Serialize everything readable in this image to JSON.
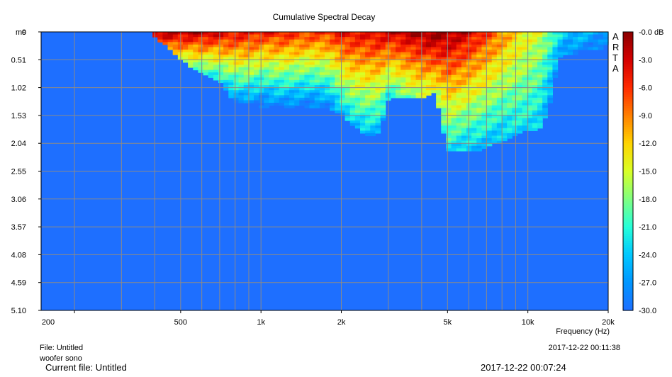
{
  "chart_data": {
    "type": "heatmap",
    "title": "Cumulative Spectral Decay",
    "xlabel": "Frequency (Hz)",
    "ylabel": "ms",
    "x_scale": "log",
    "x_range_hz": [
      150,
      20000
    ],
    "x_tick_values": [
      200,
      500,
      1000,
      2000,
      5000,
      10000,
      20000
    ],
    "x_tick_labels": [
      "200",
      "500",
      "1k",
      "2k",
      "5k",
      "10k",
      "20k"
    ],
    "y_range_ms": [
      0,
      5.1
    ],
    "y_tick_labels": [
      "0",
      "0.51",
      "1.02",
      "1.53",
      "2.04",
      "2.55",
      "3.06",
      "3.57",
      "4.08",
      "4.59",
      "5.10"
    ],
    "colorbar_range_db": [
      -30,
      0
    ],
    "colorbar_labels": [
      "-0.0 dB",
      "-3.0",
      "-6.0",
      "-9.0",
      "-12.0",
      "-15.0",
      "-18.0",
      "-21.0",
      "-24.0",
      "-27.0",
      "-30.0"
    ],
    "colorbar_colors": [
      "#8b0000",
      "#d40000",
      "#ff2a00",
      "#ff7f00",
      "#ffd400",
      "#d9ff26",
      "#80ff80",
      "#26ffd9",
      "#00c8ff",
      "#0096ff",
      "#1e6fff"
    ],
    "background_color": "#1e6fff",
    "grid": true,
    "decay_profile": {
      "frequencies_hz": [
        400,
        450,
        500,
        550,
        600,
        650,
        700,
        800,
        900,
        1000,
        1200,
        1500,
        1800,
        2000,
        2200,
        2500,
        2800,
        3000,
        3500,
        4000,
        4500,
        5000,
        5500,
        6000,
        6500,
        7000,
        8000,
        9000,
        10000,
        11000,
        12000,
        13000,
        14000,
        15000,
        17000,
        20000
      ],
      "peak_level_db": [
        -1,
        -1,
        -1.5,
        -2,
        -2,
        -2.5,
        -3,
        -4,
        -4,
        -5,
        -5,
        -6,
        -6,
        -4,
        -4,
        -4,
        -3,
        -3,
        -2,
        -1,
        0,
        -1,
        -2,
        -3,
        -5,
        -6,
        -9,
        -12,
        -14,
        -15,
        -18,
        -22,
        -24,
        -24,
        -25,
        -27
      ],
      "decay_end_ms": [
        0.1,
        0.3,
        0.5,
        0.65,
        0.75,
        0.85,
        0.9,
        1.3,
        1.3,
        1.4,
        1.4,
        1.4,
        1.4,
        1.5,
        1.7,
        1.9,
        1.85,
        1.2,
        1.2,
        1.2,
        1.1,
        2.2,
        2.2,
        2.2,
        2.2,
        2.1,
        2.0,
        1.9,
        1.8,
        1.8,
        1.4,
        0.5,
        0.4,
        0.4,
        0.35,
        0.3
      ],
      "decay_rate_db_per_ms": [
        40,
        30,
        28,
        26,
        25,
        24,
        22,
        18,
        18,
        18,
        17,
        17,
        16,
        14,
        12,
        11,
        12,
        16,
        14,
        13,
        14,
        10,
        10,
        10,
        9,
        9,
        8,
        6,
        5,
        5,
        6,
        8,
        10,
        10,
        10,
        10
      ]
    }
  },
  "side_logo_letters": [
    "A",
    "R",
    "T",
    "A"
  ],
  "footer": {
    "file_label": "File: Untitled",
    "measurement_name": "woofer sono",
    "date_time": "2017-12-22  00:11:38",
    "current_file_label": "Current file: Untitled",
    "current_date_time": "2017-12-22  00:07:24"
  }
}
